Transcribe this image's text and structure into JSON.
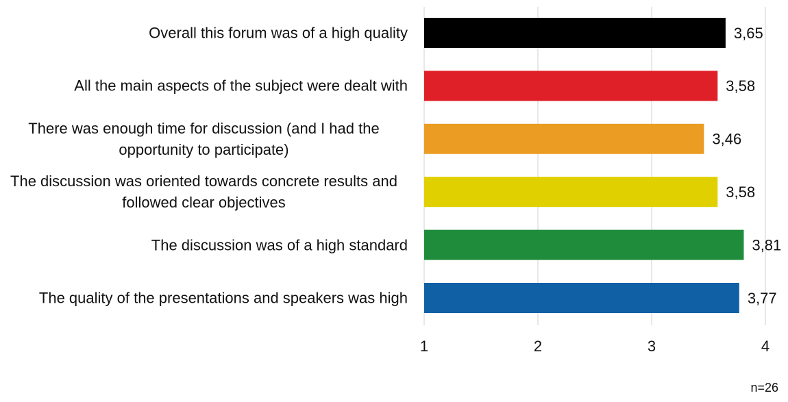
{
  "chart_data": {
    "type": "bar",
    "orientation": "horizontal",
    "categories": [
      "Overall this forum was of a high quality",
      "All the main aspects of the subject were dealt with",
      "There was enough time for discussion (and I had the opportunity to participate)",
      "The discussion was oriented towards concrete results and followed clear objectives",
      "The discussion was of a high standard",
      "The quality of the presentations and speakers was high"
    ],
    "values": [
      3.65,
      3.58,
      3.46,
      3.58,
      3.81,
      3.77
    ],
    "value_labels": [
      "3,65",
      "3,58",
      "3,46",
      "3,58",
      "3,81",
      "3,77"
    ],
    "colors": [
      "#000000",
      "#e02029",
      "#eb9c22",
      "#e1d000",
      "#1f8c3c",
      "#1060a6"
    ],
    "xlim": [
      1,
      4
    ],
    "xticks": [
      1,
      2,
      3,
      4
    ],
    "grid": true,
    "note": "n=26"
  }
}
